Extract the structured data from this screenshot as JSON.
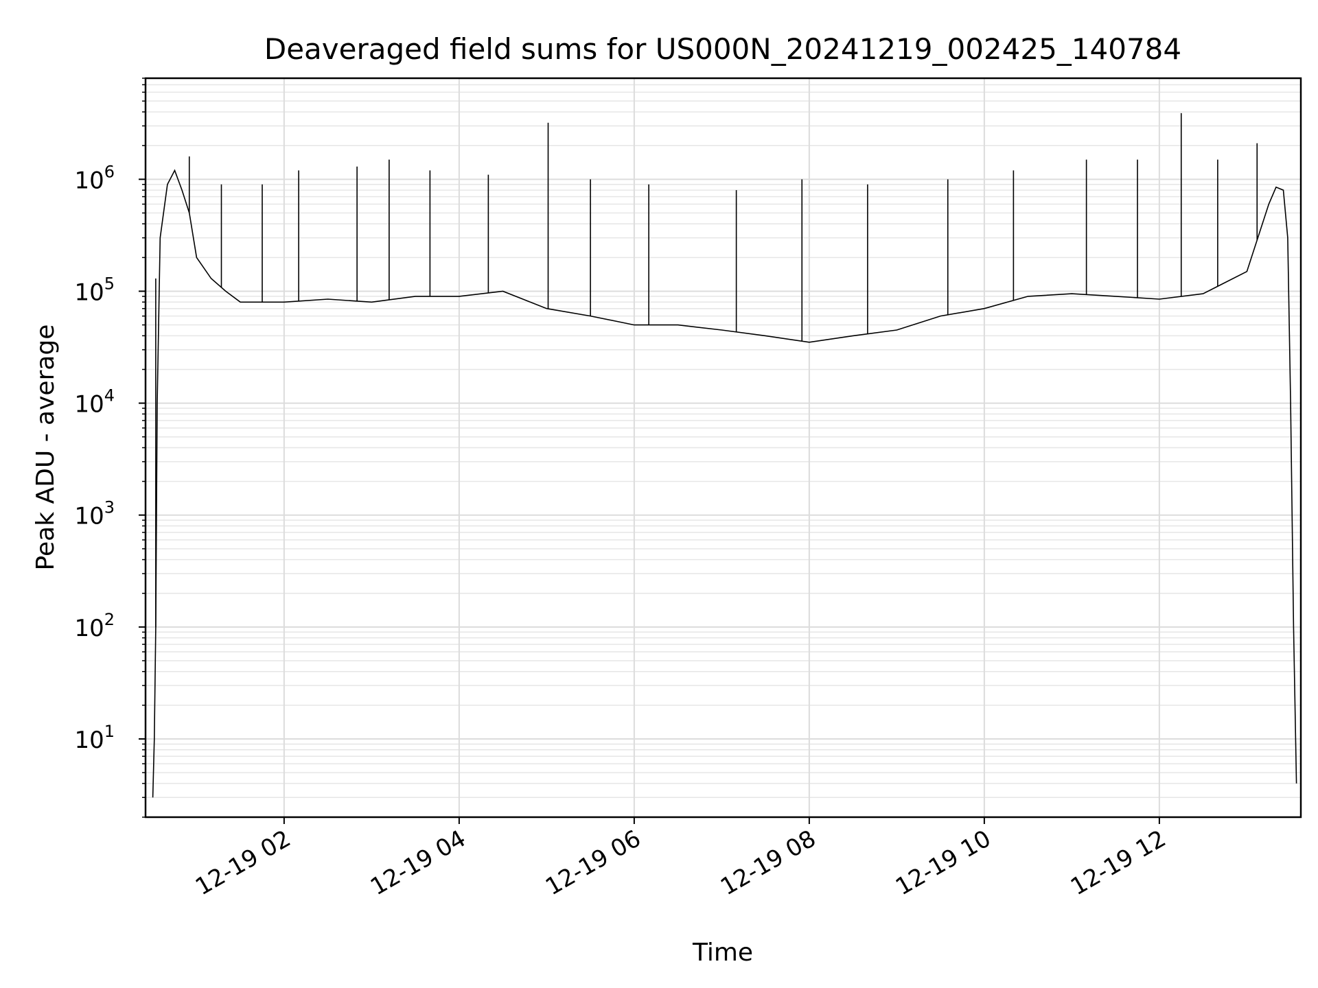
{
  "chart_data": {
    "type": "line",
    "title": "Deaveraged field sums for US000N_20241219_002425_140784",
    "xlabel": "Time",
    "ylabel": "Peak ADU - average",
    "xscale": "time",
    "yscale": "log",
    "xlim": [
      "2024-12-19 00:25",
      "2024-12-19 13:37"
    ],
    "ylim": [
      2,
      8000000
    ],
    "grid": true,
    "legend": "none",
    "line_color": "#000000",
    "x_ticks": [
      "12-19 02",
      "12-19 04",
      "12-19 06",
      "12-19 08",
      "12-19 10",
      "12-19 12"
    ],
    "y_ticks": [
      {
        "base": "10",
        "exp": "1"
      },
      {
        "base": "10",
        "exp": "2"
      },
      {
        "base": "10",
        "exp": "3"
      },
      {
        "base": "10",
        "exp": "4"
      },
      {
        "base": "10",
        "exp": "5"
      },
      {
        "base": "10",
        "exp": "6"
      }
    ],
    "series": [
      {
        "x": [
          "2024-12-19 00:30",
          "2024-12-19 00:31",
          "2024-12-19 00:32",
          "2024-12-19 00:33",
          "2024-12-19 00:35",
          "2024-12-19 00:40",
          "2024-12-19 00:45",
          "2024-12-19 00:50",
          "2024-12-19 00:55",
          "2024-12-19 01:00",
          "2024-12-19 01:10",
          "2024-12-19 01:20",
          "2024-12-19 01:30",
          "2024-12-19 02:00",
          "2024-12-19 02:30",
          "2024-12-19 03:00",
          "2024-12-19 03:30",
          "2024-12-19 04:00",
          "2024-12-19 04:30",
          "2024-12-19 05:00",
          "2024-12-19 05:30",
          "2024-12-19 06:00",
          "2024-12-19 06:30",
          "2024-12-19 07:00",
          "2024-12-19 07:30",
          "2024-12-19 08:00",
          "2024-12-19 08:30",
          "2024-12-19 09:00",
          "2024-12-19 09:30",
          "2024-12-19 10:00",
          "2024-12-19 10:30",
          "2024-12-19 11:00",
          "2024-12-19 11:30",
          "2024-12-19 12:00",
          "2024-12-19 12:30",
          "2024-12-19 13:00",
          "2024-12-19 13:15",
          "2024-12-19 13:20",
          "2024-12-19 13:25",
          "2024-12-19 13:28",
          "2024-12-19 13:30",
          "2024-12-19 13:32",
          "2024-12-19 13:34"
        ],
        "y": [
          3,
          10,
          100,
          10000,
          300000,
          900000,
          1200000,
          800000,
          500000,
          200000,
          130000,
          100000,
          80000,
          80000,
          85000,
          80000,
          90000,
          90000,
          100000,
          70000,
          60000,
          50000,
          50000,
          45000,
          40000,
          35000,
          40000,
          45000,
          60000,
          70000,
          90000,
          95000,
          90000,
          85000,
          95000,
          150000,
          600000,
          850000,
          800000,
          300000,
          10000,
          100,
          4
        ]
      }
    ],
    "spikes": [
      {
        "x": "2024-12-19 00:32",
        "y": 130000
      },
      {
        "x": "2024-12-19 00:55",
        "y": 1600000
      },
      {
        "x": "2024-12-19 01:17",
        "y": 900000
      },
      {
        "x": "2024-12-19 01:45",
        "y": 900000
      },
      {
        "x": "2024-12-19 02:10",
        "y": 1200000
      },
      {
        "x": "2024-12-19 02:50",
        "y": 1300000
      },
      {
        "x": "2024-12-19 03:12",
        "y": 1500000
      },
      {
        "x": "2024-12-19 03:40",
        "y": 1200000
      },
      {
        "x": "2024-12-19 04:20",
        "y": 1100000
      },
      {
        "x": "2024-12-19 05:01",
        "y": 3200000
      },
      {
        "x": "2024-12-19 05:30",
        "y": 1000000
      },
      {
        "x": "2024-12-19 06:10",
        "y": 900000
      },
      {
        "x": "2024-12-19 07:10",
        "y": 800000
      },
      {
        "x": "2024-12-19 07:55",
        "y": 1000000
      },
      {
        "x": "2024-12-19 08:40",
        "y": 900000
      },
      {
        "x": "2024-12-19 09:35",
        "y": 1000000
      },
      {
        "x": "2024-12-19 10:20",
        "y": 1200000
      },
      {
        "x": "2024-12-19 11:10",
        "y": 1500000
      },
      {
        "x": "2024-12-19 11:45",
        "y": 1500000
      },
      {
        "x": "2024-12-19 12:15",
        "y": 3900000
      },
      {
        "x": "2024-12-19 12:40",
        "y": 1500000
      },
      {
        "x": "2024-12-19 13:07",
        "y": 2100000
      }
    ]
  }
}
